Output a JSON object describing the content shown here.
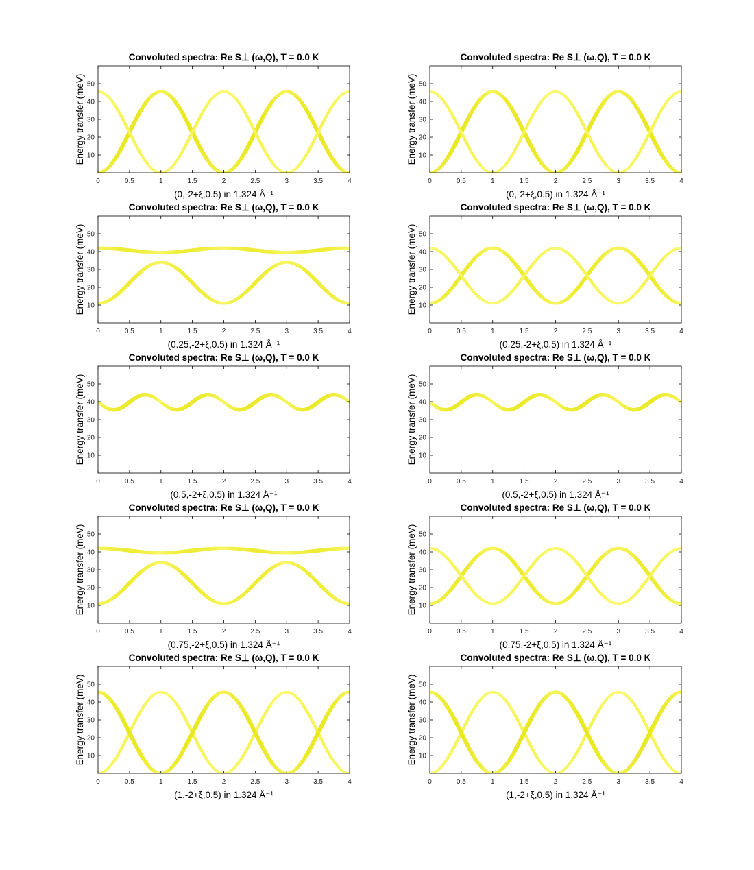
{
  "figure": {
    "background": "#ffffff"
  },
  "chart_data": [
    {
      "type": "heatmap",
      "title": "Convoluted spectra: Re S⊥ (ω,Q), T =   0.0 K",
      "xlabel": "(0,-2+ξ,0.5) in 1.324 Å⁻¹",
      "ylabel": "Energy transfer (meV)",
      "xlim": [
        0,
        4
      ],
      "ylim": [
        0,
        60
      ],
      "xticks": [
        "0",
        "0.5",
        "1",
        "1.5",
        "2",
        "2.5",
        "3",
        "3.5",
        "4"
      ],
      "yticks": [
        "10",
        "20",
        "30",
        "40",
        "50"
      ],
      "colormap": "yellow",
      "series": [
        {
          "branch": "lower",
          "min": 0,
          "max": 45.5,
          "intensity_max": 0.75
        },
        {
          "branch": "upper",
          "min": 0,
          "max": 45.5,
          "intensity_max": 0.35
        }
      ]
    },
    {
      "type": "heatmap",
      "title": "Convoluted spectra: Re S⊥ (ω,Q), T =   0.0 K",
      "xlabel": "(0,-2+ξ,0.5) in 1.324 Å⁻¹",
      "ylabel": "Energy transfer (meV)",
      "xlim": [
        0,
        4
      ],
      "ylim": [
        0,
        60
      ],
      "xticks": [
        "0",
        "0.5",
        "1",
        "1.5",
        "2",
        "2.5",
        "3",
        "3.5",
        "4"
      ],
      "yticks": [
        "10",
        "20",
        "30",
        "40",
        "50"
      ],
      "colormap": "yellow",
      "series": [
        {
          "branch": "lower",
          "min": 0,
          "max": 45.5,
          "intensity_max": 0.75
        },
        {
          "branch": "upper",
          "min": 0,
          "max": 45.5,
          "intensity_max": 0.35
        }
      ]
    },
    {
      "type": "heatmap",
      "title": "Convoluted spectra: Re S⊥ (ω,Q), T =   0.0 K",
      "xlabel": "(0.25,-2+ξ,0.5) in 1.324 Å⁻¹",
      "ylabel": "Energy transfer (meV)",
      "xlim": [
        0,
        4
      ],
      "ylim": [
        0,
        60
      ],
      "xticks": [
        "0",
        "0.5",
        "1",
        "1.5",
        "2",
        "2.5",
        "3",
        "3.5",
        "4"
      ],
      "yticks": [
        "10",
        "20",
        "30",
        "40",
        "50"
      ],
      "colormap": "yellow",
      "series": [
        {
          "branch": "lower",
          "min": 11,
          "max": 34,
          "intensity_max": 0.6
        },
        {
          "branch": "upper",
          "min": 39.5,
          "max": 42,
          "intensity_max": 0.6
        }
      ]
    },
    {
      "type": "heatmap",
      "title": "Convoluted spectra: Re S⊥ (ω,Q), T =   0.0 K",
      "xlabel": "(0.25,-2+ξ,0.5) in 1.324 Å⁻¹",
      "ylabel": "Energy transfer (meV)",
      "xlim": [
        0,
        4
      ],
      "ylim": [
        0,
        60
      ],
      "xticks": [
        "0",
        "0.5",
        "1",
        "1.5",
        "2",
        "2.5",
        "3",
        "3.5",
        "4"
      ],
      "yticks": [
        "10",
        "20",
        "30",
        "40",
        "50"
      ],
      "colormap": "yellow",
      "series": [
        {
          "branch": "lower",
          "min": 11,
          "max": 42,
          "intensity_max": 0.65
        },
        {
          "branch": "upper",
          "min": 11,
          "max": 42,
          "intensity_max": 0.35
        }
      ]
    },
    {
      "type": "heatmap",
      "title": "Convoluted spectra: Re S⊥ (ω,Q), T =   0.0 K",
      "xlabel": "(0.5,-2+ξ,0.5) in 1.324 Å⁻¹",
      "ylabel": "Energy transfer (meV)",
      "xlim": [
        0,
        4
      ],
      "ylim": [
        0,
        60
      ],
      "xticks": [
        "0",
        "0.5",
        "1",
        "1.5",
        "2",
        "2.5",
        "3",
        "3.5",
        "4"
      ],
      "yticks": [
        "10",
        "20",
        "30",
        "40",
        "50"
      ],
      "colormap": "yellow",
      "series": [
        {
          "branch": "single",
          "min": 35.5,
          "max": 44,
          "intensity_max": 0.7
        }
      ]
    },
    {
      "type": "heatmap",
      "title": "Convoluted spectra: Re S⊥ (ω,Q), T =   0.0 K",
      "xlabel": "(0.5,-2+ξ,0.5) in 1.324 Å⁻¹",
      "ylabel": "Energy transfer (meV)",
      "xlim": [
        0,
        4
      ],
      "ylim": [
        0,
        60
      ],
      "xticks": [
        "0",
        "0.5",
        "1",
        "1.5",
        "2",
        "2.5",
        "3",
        "3.5",
        "4"
      ],
      "yticks": [
        "10",
        "20",
        "30",
        "40",
        "50"
      ],
      "colormap": "yellow",
      "series": [
        {
          "branch": "single",
          "min": 35.5,
          "max": 44,
          "intensity_max": 0.7
        }
      ]
    },
    {
      "type": "heatmap",
      "title": "Convoluted spectra: Re S⊥ (ω,Q), T =   0.0 K",
      "xlabel": "(0.75,-2+ξ,0.5) in 1.324 Å⁻¹",
      "ylabel": "Energy transfer (meV)",
      "xlim": [
        0,
        4
      ],
      "ylim": [
        0,
        60
      ],
      "xticks": [
        "0",
        "0.5",
        "1",
        "1.5",
        "2",
        "2.5",
        "3",
        "3.5",
        "4"
      ],
      "yticks": [
        "10",
        "20",
        "30",
        "40",
        "50"
      ],
      "colormap": "yellow",
      "series": [
        {
          "branch": "lower",
          "min": 11,
          "max": 34,
          "intensity_max": 0.6
        },
        {
          "branch": "upper",
          "min": 39.5,
          "max": 42,
          "intensity_max": 0.6
        }
      ]
    },
    {
      "type": "heatmap",
      "title": "Convoluted spectra: Re S⊥ (ω,Q), T =   0.0 K",
      "xlabel": "(0.75,-2+ξ,0.5) in 1.324 Å⁻¹",
      "ylabel": "Energy transfer (meV)",
      "xlim": [
        0,
        4
      ],
      "ylim": [
        0,
        60
      ],
      "xticks": [
        "0",
        "0.5",
        "1",
        "1.5",
        "2",
        "2.5",
        "3",
        "3.5",
        "4"
      ],
      "yticks": [
        "10",
        "20",
        "30",
        "40",
        "50"
      ],
      "colormap": "yellow",
      "series": [
        {
          "branch": "lower",
          "min": 11,
          "max": 42,
          "intensity_max": 0.65
        },
        {
          "branch": "upper",
          "min": 11,
          "max": 42,
          "intensity_max": 0.35
        }
      ]
    },
    {
      "type": "heatmap",
      "title": "Convoluted spectra: Re S⊥ (ω,Q), T =   0.0 K",
      "xlabel": "(1,-2+ξ,0.5) in 1.324 Å⁻¹",
      "ylabel": "Energy transfer (meV)",
      "xlim": [
        0,
        4
      ],
      "ylim": [
        0,
        60
      ],
      "xticks": [
        "0",
        "0.5",
        "1",
        "1.5",
        "2",
        "2.5",
        "3",
        "3.5",
        "4"
      ],
      "yticks": [
        "10",
        "20",
        "30",
        "40",
        "50"
      ],
      "colormap": "yellow",
      "series": [
        {
          "branch": "lower",
          "min": 0,
          "max": 45.5,
          "intensity_max": 0.35
        },
        {
          "branch": "upper",
          "min": 0,
          "max": 45.5,
          "intensity_max": 0.75
        }
      ]
    },
    {
      "type": "heatmap",
      "title": "Convoluted spectra: Re S⊥ (ω,Q), T =   0.0 K",
      "xlabel": "(1,-2+ξ,0.5) in 1.324 Å⁻¹",
      "ylabel": "Energy transfer (meV)",
      "xlim": [
        0,
        4
      ],
      "ylim": [
        0,
        60
      ],
      "xticks": [
        "0",
        "0.5",
        "1",
        "1.5",
        "2",
        "2.5",
        "3",
        "3.5",
        "4"
      ],
      "yticks": [
        "10",
        "20",
        "30",
        "40",
        "50"
      ],
      "colormap": "yellow",
      "series": [
        {
          "branch": "lower",
          "min": 0,
          "max": 45.5,
          "intensity_max": 0.35
        },
        {
          "branch": "upper",
          "min": 0,
          "max": 45.5,
          "intensity_max": 0.75
        }
      ]
    }
  ],
  "colors": {
    "low": "#ffff8a",
    "high": "#e2e000",
    "axis": "#000000"
  }
}
